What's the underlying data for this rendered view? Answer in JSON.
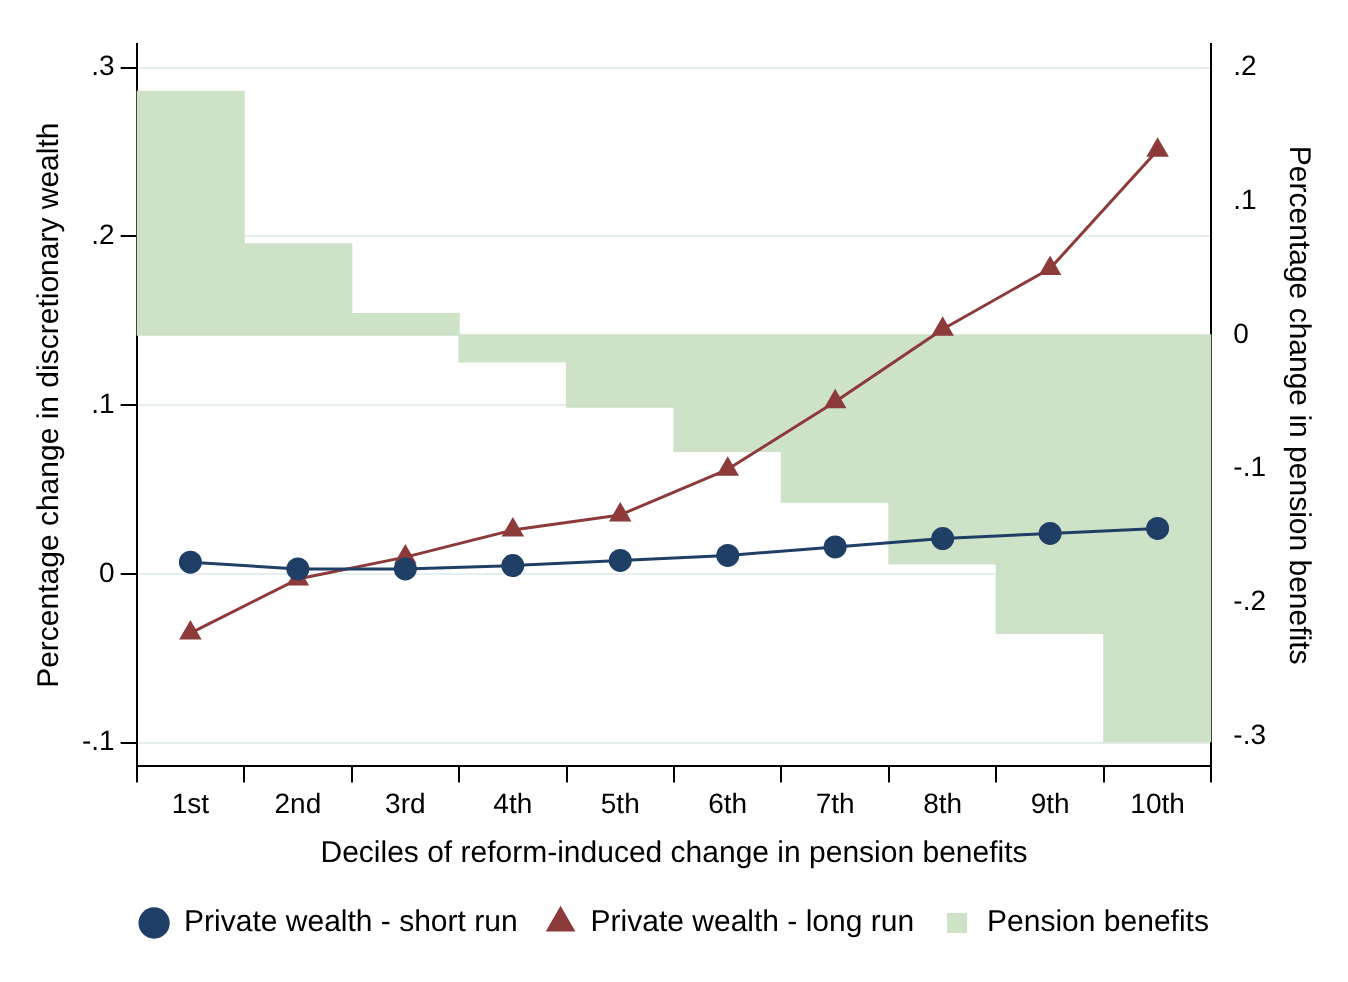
{
  "chart_data": {
    "type": "line",
    "xlabel": "Deciles of reform-induced change in pension benefits",
    "ylabel": "Percentage change in discretionary wealth",
    "y2label": "Percentage change in pension benefits",
    "categories": [
      "1st",
      "2nd",
      "3rd",
      "4th",
      "5th",
      "6th",
      "7th",
      "8th",
      "9th",
      "10th"
    ],
    "series": [
      {
        "name": "Private wealth - short run",
        "color": "#1f3f66",
        "marker": "circle",
        "values": [
          0.007,
          0.003,
          0.003,
          0.005,
          0.008,
          0.011,
          0.016,
          0.021,
          0.024,
          0.027
        ]
      },
      {
        "name": "Private wealth - long run",
        "color": "#8c3a3a",
        "marker": "triangle",
        "values": [
          -0.035,
          -0.003,
          0.01,
          0.026,
          0.035,
          0.062,
          0.102,
          0.145,
          0.181,
          0.251
        ]
      },
      {
        "name": "Pension benefits",
        "type": "bar",
        "axis": "y2",
        "color": "#cde2c7",
        "values": [
          0.182,
          0.068,
          0.016,
          -0.02,
          -0.054,
          -0.087,
          -0.125,
          -0.171,
          -0.223,
          -0.304
        ]
      }
    ],
    "ylim": [
      -0.114,
      0.314
    ],
    "yticks": [
      {
        "value": -0.1,
        "label": "-.1"
      },
      0,
      {
        "value": 0.1,
        "label": ".1"
      },
      {
        "value": 0.2,
        "label": ".2"
      },
      {
        "value": 0.3,
        "label": ".3"
      }
    ],
    "y2lim": [
      -0.3225,
      0.2175
    ],
    "y2ticks": [
      {
        "value": -0.3,
        "label": "-.3"
      },
      {
        "value": -0.2,
        "label": "-.2"
      },
      {
        "value": -0.1,
        "label": "-.1"
      },
      0,
      {
        "value": 0.1,
        "label": ".1"
      },
      {
        "value": 0.2,
        "label": ".2"
      }
    ],
    "grid": "y",
    "legend": "bottom"
  }
}
